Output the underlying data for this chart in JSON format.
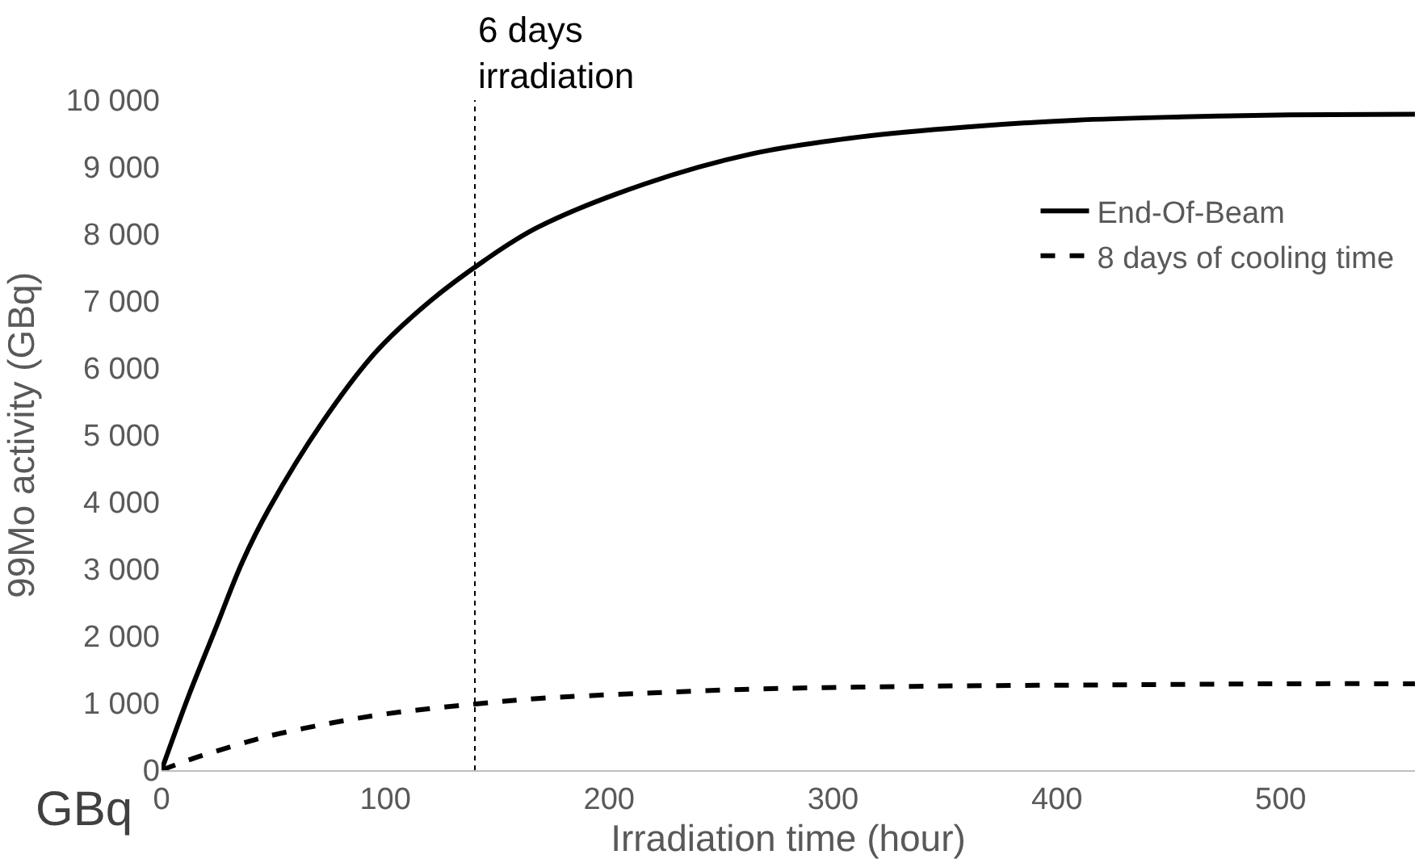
{
  "chart_data": {
    "type": "line",
    "xlabel": "Irradiation time (hour)",
    "ylabel": "99Mo activity (GBq)",
    "xlim": [
      0,
      560
    ],
    "xticks": [
      0,
      100,
      200,
      300,
      400,
      500
    ],
    "ylim": [
      0,
      10000
    ],
    "yticks": [
      {
        "value": 0,
        "label": "0"
      },
      {
        "value": 1000,
        "label": "1 000"
      },
      {
        "value": 2000,
        "label": "2 000"
      },
      {
        "value": 3000,
        "label": "3 000"
      },
      {
        "value": 4000,
        "label": "4 000"
      },
      {
        "value": 5000,
        "label": "5 000"
      },
      {
        "value": 6000,
        "label": "6 000"
      },
      {
        "value": 7000,
        "label": "7 000"
      },
      {
        "value": 8000,
        "label": "8 000"
      },
      {
        "value": 9000,
        "label": "9 000"
      },
      {
        "value": 10000,
        "label": "10 000"
      }
    ],
    "legend": "top right",
    "marker": "none",
    "x": [
      0,
      12,
      24,
      36,
      48,
      72,
      96,
      120,
      144,
      168,
      216,
      264,
      312,
      360,
      408,
      456,
      504,
      560
    ],
    "series": [
      {
        "name": "End-Of-Beam",
        "color": "#000000",
        "line_style": "solid",
        "values": [
          0,
          1100,
          2100,
          3100,
          3900,
          5200,
          6250,
          7000,
          7600,
          8100,
          8750,
          9200,
          9450,
          9600,
          9700,
          9750,
          9780,
          9790
        ]
      },
      {
        "name": "8 days of cooling time",
        "color": "#000000",
        "line_style": "dashed",
        "values": [
          0,
          150,
          280,
          400,
          510,
          680,
          820,
          920,
          1000,
          1070,
          1150,
          1210,
          1240,
          1260,
          1270,
          1280,
          1290,
          1290
        ]
      }
    ],
    "ref_lines": [
      {
        "axis": "x",
        "value": 140,
        "label": "6 days\nirradiation",
        "line_style": "dotted",
        "color": "#000000"
      }
    ],
    "annotations": [
      "GBq"
    ]
  }
}
